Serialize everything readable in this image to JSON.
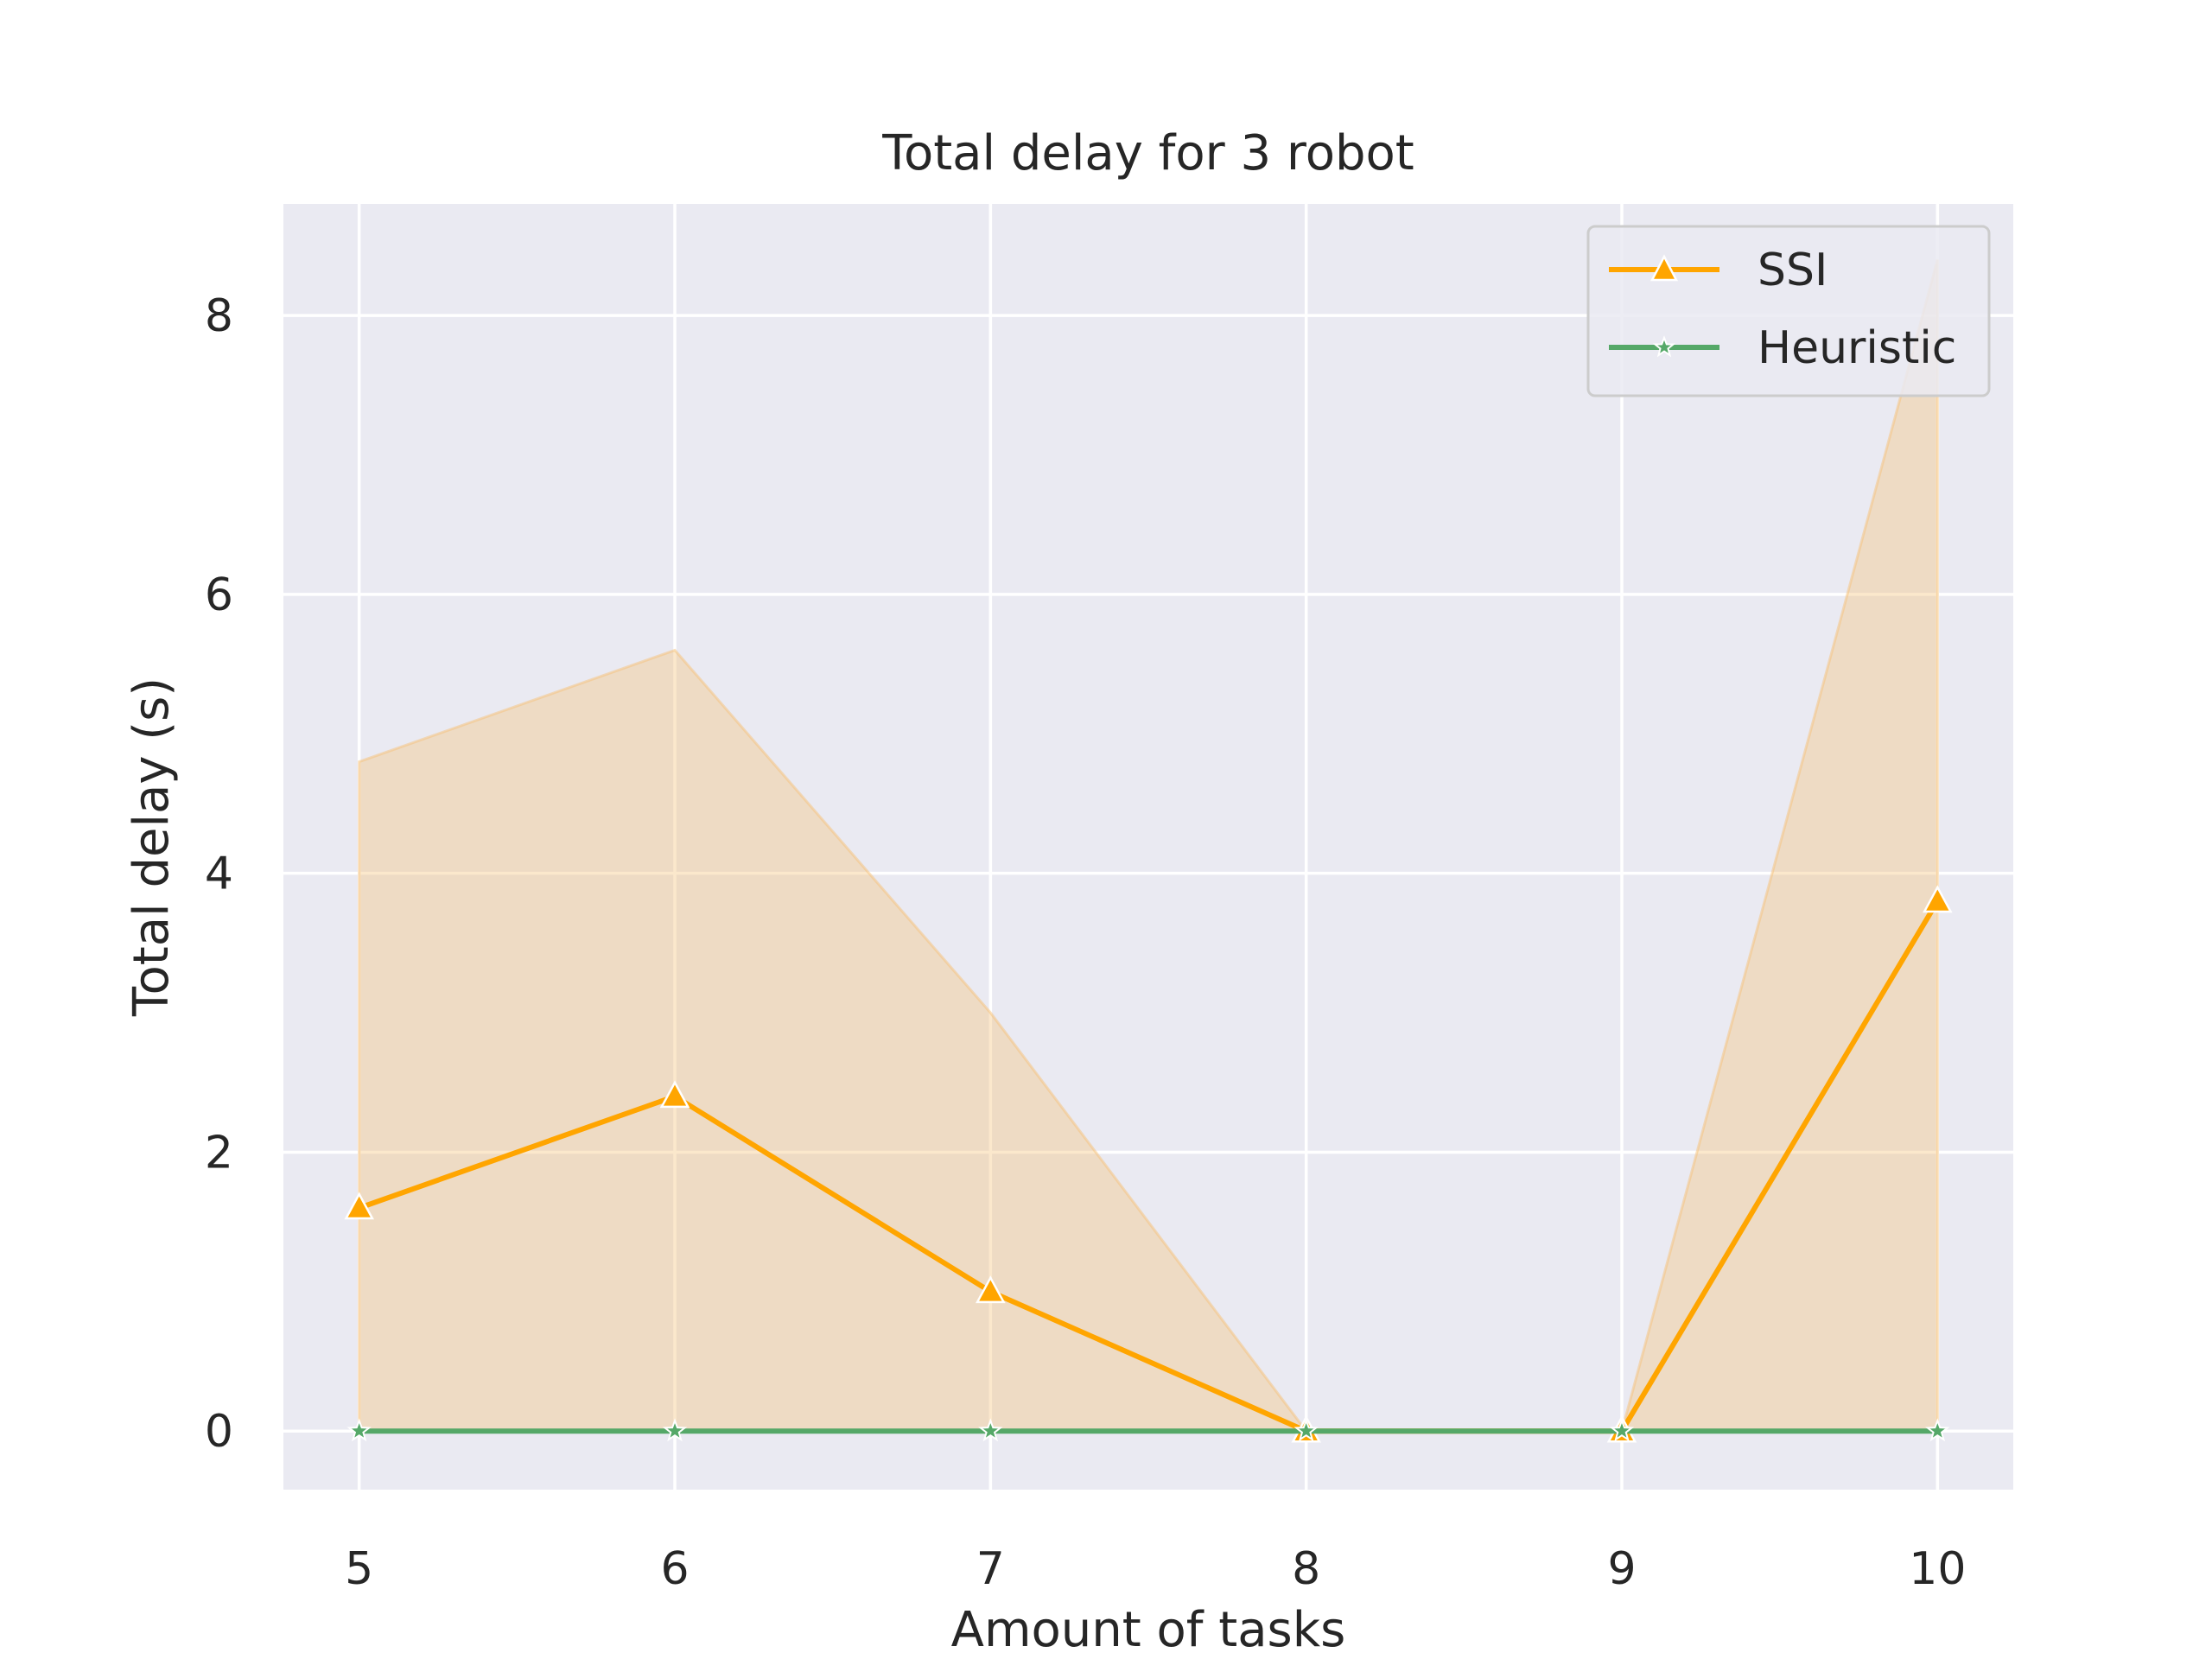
{
  "chart_data": {
    "type": "line",
    "title": "Total delay for 3 robot",
    "xlabel": "Amount of tasks",
    "ylabel": "Total delay (s)",
    "x": [
      5,
      6,
      7,
      8,
      9,
      10
    ],
    "x_ticks": [
      "5",
      "6",
      "7",
      "8",
      "9",
      "10"
    ],
    "y_ticks": [
      "0",
      "2",
      "4",
      "6",
      "8"
    ],
    "xlim": [
      4.76,
      10.24
    ],
    "ylim": [
      -0.42,
      8.8
    ],
    "grid": true,
    "legend_position": "top-right",
    "series": [
      {
        "name": "SSI",
        "values": [
          1.6,
          2.4,
          1.0,
          0.0,
          0.0,
          3.8
        ],
        "band_upper": [
          4.8,
          5.6,
          3.0,
          0.0,
          0.0,
          8.4
        ],
        "band_lower": [
          0.0,
          0.0,
          0.0,
          0.0,
          0.0,
          0.0
        ],
        "color": "#ffa500",
        "band_color": "#f5c27a",
        "marker": "triangle"
      },
      {
        "name": "Heuristic",
        "values": [
          0,
          0,
          0,
          0,
          0,
          0
        ],
        "color": "#55a868",
        "marker": "star"
      }
    ]
  },
  "colors": {
    "plot_background": "#eaeaf2",
    "grid": "#ffffff",
    "text": "#262626"
  }
}
